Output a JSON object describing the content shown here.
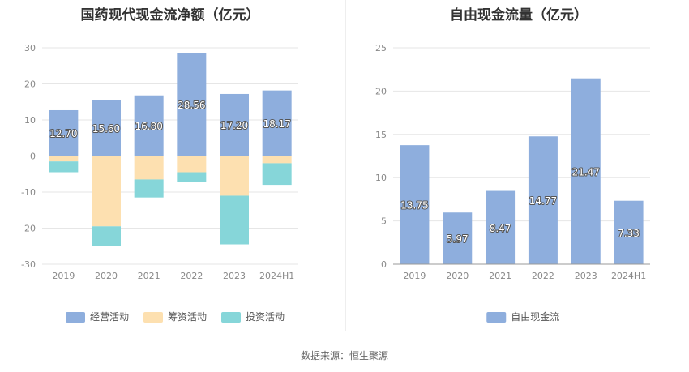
{
  "source": "数据来源：恒生聚源",
  "chart_data": [
    {
      "type": "bar",
      "stacked": true,
      "title": "国药现代现金流净额（亿元）",
      "categories": [
        "2019",
        "2020",
        "2021",
        "2022",
        "2023",
        "2024H1"
      ],
      "series": [
        {
          "name": "经营活动",
          "color": "#8eaedd",
          "values": [
            12.7,
            15.6,
            16.8,
            28.56,
            17.2,
            18.17
          ]
        },
        {
          "name": "筹资活动",
          "color": "#fde0b0",
          "values": [
            -1.5,
            -19.5,
            -6.5,
            -4.5,
            -11.0,
            -2.0
          ]
        },
        {
          "name": "投资活动",
          "color": "#86d6d9",
          "values": [
            -3.0,
            -5.5,
            -5.0,
            -2.8,
            -13.5,
            -6.0
          ]
        }
      ],
      "data_labels_series": "经营活动",
      "yticks": [
        "30",
        "20",
        "10",
        "0",
        "-10",
        "-20",
        "-30"
      ],
      "ylim": [
        -30,
        30
      ],
      "grid": true,
      "legend": "bottom"
    },
    {
      "type": "bar",
      "title": "自由现金流量（亿元）",
      "categories": [
        "2019",
        "2020",
        "2021",
        "2022",
        "2023",
        "2024H1"
      ],
      "series": [
        {
          "name": "自由现金流",
          "color": "#8eaedd",
          "values": [
            13.75,
            5.97,
            8.47,
            14.77,
            21.47,
            7.33
          ]
        }
      ],
      "data_labels": [
        "13.75",
        "5.97",
        "8.47",
        "14.77",
        "21.47",
        "7.33"
      ],
      "yticks": [
        "25",
        "20",
        "15",
        "10",
        "5",
        "0"
      ],
      "ylim": [
        0,
        25
      ],
      "grid": true,
      "legend": "bottom"
    }
  ]
}
